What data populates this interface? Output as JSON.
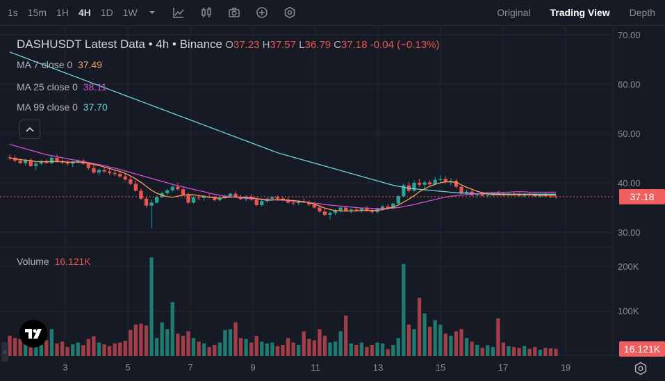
{
  "toolbar": {
    "timeframes": [
      {
        "label": "1s",
        "active": false
      },
      {
        "label": "15m",
        "active": false
      },
      {
        "label": "1H",
        "active": false
      },
      {
        "label": "4H",
        "active": true
      },
      {
        "label": "1D",
        "active": false
      },
      {
        "label": "1W",
        "active": false
      }
    ],
    "icons": [
      "chevron-down-icon",
      "indicators-icon",
      "candle-type-icon",
      "camera-icon",
      "add-icon",
      "settings-icon"
    ],
    "view_tabs": [
      {
        "label": "Original",
        "active": false
      },
      {
        "label": "Trading View",
        "active": true
      },
      {
        "label": "Depth",
        "active": false
      }
    ]
  },
  "legend": {
    "symbol": "DASHUSDT Latest Data • 4h • Binance",
    "o_label": "O",
    "o_value": "37.23",
    "h_label": "H",
    "h_value": "37.57",
    "l_label": "L",
    "l_value": "36.79",
    "c_label": "C",
    "c_value": "37.18",
    "change": "-0.04 (−0.13%)",
    "ma7_label": "MA 7 close 0",
    "ma7_value": "37.49",
    "ma7_color": "#f7a25c",
    "ma25_label": "MA 25 close 0",
    "ma25_value": "38.11",
    "ma25_color": "#d14fd6",
    "ma99_label": "MA 99 close 0",
    "ma99_value": "37.70",
    "ma99_color": "#6fd6cf"
  },
  "volume_legend": {
    "label": "Volume",
    "value": "16.121K"
  },
  "price_axis": [
    "70.00",
    "60.00",
    "50.00",
    "40.00",
    "30.00"
  ],
  "volume_axis": [
    "200K",
    "100K"
  ],
  "date_axis": [
    "3",
    "5",
    "7",
    "9",
    "11",
    "13",
    "15",
    "17",
    "19"
  ],
  "current_price": {
    "value": "37.18",
    "price": 37.18,
    "color": "#f05e5e"
  },
  "current_volume": {
    "value": "16.121K",
    "color": "#f05e5e"
  },
  "colors": {
    "up": "#26a69a",
    "down": "#ef5350",
    "up_vol": "#1f7a70",
    "down_vol": "#a13e47"
  },
  "chart_data": {
    "type": "candlestick",
    "price_range": [
      30,
      70
    ],
    "volume_range": [
      0,
      200
    ],
    "volume_unit": "K",
    "candles": [
      [
        45.2,
        45.8,
        44.6,
        45.1,
        45
      ],
      [
        45.1,
        45.6,
        44.2,
        44.5,
        40
      ],
      [
        44.5,
        45.0,
        43.8,
        44.0,
        38
      ],
      [
        44.0,
        44.9,
        43.5,
        44.6,
        30
      ],
      [
        44.6,
        45.0,
        43.2,
        43.4,
        55
      ],
      [
        43.4,
        44.2,
        42.5,
        43.9,
        42
      ],
      [
        43.9,
        44.7,
        43.6,
        44.3,
        25
      ],
      [
        44.3,
        44.8,
        43.9,
        44.0,
        35
      ],
      [
        44.0,
        45.5,
        43.8,
        45.1,
        60
      ],
      [
        45.1,
        45.8,
        44.1,
        44.4,
        28
      ],
      [
        44.4,
        44.9,
        43.8,
        44.1,
        32
      ],
      [
        44.1,
        44.7,
        43.5,
        43.9,
        20
      ],
      [
        43.9,
        44.5,
        43.2,
        44.2,
        26
      ],
      [
        44.2,
        44.8,
        43.9,
        44.5,
        30
      ],
      [
        44.5,
        44.9,
        43.7,
        43.9,
        24
      ],
      [
        43.9,
        44.2,
        42.6,
        43.0,
        38
      ],
      [
        43.0,
        43.5,
        41.8,
        42.1,
        44
      ],
      [
        42.1,
        42.9,
        41.5,
        42.6,
        30
      ],
      [
        42.6,
        43.1,
        42.0,
        42.3,
        26
      ],
      [
        42.3,
        42.8,
        41.6,
        42.0,
        22
      ],
      [
        42.0,
        42.6,
        41.4,
        41.8,
        28
      ],
      [
        41.8,
        42.4,
        41.0,
        41.3,
        30
      ],
      [
        41.3,
        41.9,
        40.4,
        40.7,
        34
      ],
      [
        40.7,
        41.2,
        39.5,
        39.8,
        58
      ],
      [
        39.8,
        40.5,
        38.2,
        38.4,
        70
      ],
      [
        38.4,
        38.9,
        36.5,
        36.8,
        72
      ],
      [
        36.8,
        37.2,
        35.0,
        35.4,
        68
      ],
      [
        35.4,
        36.6,
        30.8,
        36.0,
        220
      ],
      [
        36.0,
        37.4,
        35.8,
        37.1,
        40
      ],
      [
        37.1,
        38.2,
        36.9,
        37.9,
        75
      ],
      [
        37.9,
        38.8,
        37.5,
        38.5,
        60
      ],
      [
        38.5,
        39.5,
        38.2,
        39.2,
        120
      ],
      [
        39.2,
        40.0,
        38.4,
        38.7,
        50
      ],
      [
        38.7,
        39.2,
        37.4,
        37.6,
        45
      ],
      [
        37.6,
        38.0,
        35.7,
        36.0,
        55
      ],
      [
        36.0,
        37.3,
        35.8,
        37.0,
        40
      ],
      [
        37.0,
        37.6,
        36.5,
        36.9,
        32
      ],
      [
        36.9,
        37.5,
        36.4,
        37.2,
        28
      ],
      [
        37.2,
        37.8,
        36.8,
        37.0,
        20
      ],
      [
        37.0,
        37.3,
        36.3,
        36.5,
        25
      ],
      [
        36.5,
        37.2,
        36.2,
        37.0,
        30
      ],
      [
        37.0,
        37.6,
        36.8,
        37.3,
        58
      ],
      [
        37.3,
        38.0,
        37.0,
        37.8,
        60
      ],
      [
        37.8,
        38.3,
        37.0,
        37.2,
        75
      ],
      [
        37.2,
        37.6,
        36.5,
        36.7,
        40
      ],
      [
        36.7,
        37.5,
        36.3,
        37.2,
        38
      ],
      [
        37.2,
        37.7,
        36.4,
        36.6,
        30
      ],
      [
        36.6,
        37.0,
        35.2,
        35.5,
        45
      ],
      [
        35.5,
        36.6,
        35.2,
        36.3,
        32
      ],
      [
        36.3,
        37.0,
        35.9,
        36.8,
        28
      ],
      [
        36.8,
        37.3,
        36.5,
        37.1,
        30
      ],
      [
        37.1,
        37.5,
        36.6,
        36.8,
        22
      ],
      [
        36.8,
        37.2,
        36.3,
        36.6,
        25
      ],
      [
        36.6,
        37.1,
        35.8,
        36.0,
        40
      ],
      [
        36.0,
        36.6,
        35.4,
        35.9,
        30
      ],
      [
        35.9,
        36.5,
        35.5,
        36.2,
        25
      ],
      [
        36.2,
        36.9,
        35.9,
        36.0,
        55
      ],
      [
        36.0,
        36.4,
        35.3,
        35.6,
        38
      ],
      [
        35.6,
        36.0,
        34.8,
        35.0,
        35
      ],
      [
        35.0,
        35.5,
        34.0,
        34.2,
        60
      ],
      [
        34.2,
        34.9,
        33.2,
        33.5,
        45
      ],
      [
        33.5,
        34.2,
        32.6,
        33.9,
        30
      ],
      [
        33.9,
        34.7,
        33.5,
        34.4,
        32
      ],
      [
        34.4,
        35.2,
        34.0,
        35.0,
        55
      ],
      [
        35.0,
        35.4,
        34.1,
        34.3,
        90
      ],
      [
        34.3,
        34.9,
        33.8,
        34.6,
        28
      ],
      [
        34.6,
        35.1,
        34.2,
        34.4,
        25
      ],
      [
        34.4,
        35.0,
        34.0,
        34.8,
        30
      ],
      [
        34.8,
        35.3,
        34.2,
        34.3,
        20
      ],
      [
        34.3,
        34.8,
        33.7,
        34.1,
        25
      ],
      [
        34.1,
        35.0,
        33.8,
        34.8,
        30
      ],
      [
        34.8,
        35.5,
        34.4,
        35.2,
        28
      ],
      [
        35.2,
        35.8,
        34.6,
        34.8,
        15
      ],
      [
        34.8,
        36.0,
        34.6,
        35.8,
        25
      ],
      [
        35.8,
        37.5,
        35.6,
        37.3,
        40
      ],
      [
        37.3,
        39.8,
        37.0,
        39.5,
        205
      ],
      [
        39.5,
        40.2,
        38.0,
        38.4,
        70
      ],
      [
        38.4,
        40.5,
        38.1,
        40.0,
        60
      ],
      [
        40.0,
        40.8,
        39.2,
        39.6,
        130
      ],
      [
        39.6,
        40.4,
        38.8,
        40.1,
        95
      ],
      [
        40.1,
        40.6,
        39.4,
        39.7,
        65
      ],
      [
        39.7,
        41.2,
        39.5,
        40.6,
        80
      ],
      [
        40.6,
        41.5,
        40.2,
        40.8,
        70
      ],
      [
        40.8,
        41.3,
        39.8,
        40.2,
        50
      ],
      [
        40.2,
        40.9,
        39.5,
        40.4,
        45
      ],
      [
        40.4,
        40.8,
        38.9,
        39.2,
        55
      ],
      [
        39.2,
        39.6,
        37.5,
        37.8,
        60
      ],
      [
        37.8,
        38.6,
        37.6,
        38.2,
        40
      ],
      [
        38.2,
        38.7,
        37.3,
        37.5,
        32
      ],
      [
        37.5,
        38.0,
        37.1,
        37.7,
        25
      ],
      [
        37.7,
        38.2,
        37.2,
        37.4,
        18
      ],
      [
        37.4,
        37.9,
        37.0,
        37.6,
        24
      ],
      [
        37.6,
        38.1,
        37.3,
        37.9,
        20
      ],
      [
        37.9,
        38.4,
        37.5,
        37.7,
        84
      ],
      [
        37.7,
        38.1,
        37.2,
        37.5,
        30
      ],
      [
        37.5,
        38.0,
        37.3,
        37.8,
        22
      ],
      [
        37.8,
        38.2,
        37.4,
        37.6,
        20
      ],
      [
        37.6,
        38.0,
        37.2,
        37.4,
        18
      ],
      [
        37.4,
        37.9,
        37.1,
        37.7,
        22
      ],
      [
        37.7,
        38.1,
        37.3,
        37.5,
        16
      ],
      [
        37.5,
        37.9,
        37.2,
        37.3,
        20
      ],
      [
        37.3,
        37.8,
        37.0,
        37.6,
        14
      ],
      [
        37.6,
        38.0,
        37.2,
        37.3,
        18
      ],
      [
        37.3,
        37.7,
        36.9,
        37.2,
        17
      ],
      [
        37.23,
        37.57,
        36.79,
        37.18,
        16
      ]
    ],
    "ma7": [
      45.0,
      44.9,
      44.7,
      44.6,
      44.5,
      44.3,
      44.3,
      44.3,
      44.3,
      44.3,
      44.3,
      44.2,
      44.2,
      44.2,
      44.1,
      44.0,
      43.7,
      43.5,
      43.2,
      42.9,
      42.6,
      42.3,
      41.9,
      41.4,
      40.8,
      40.1,
      39.3,
      38.5,
      37.9,
      37.5,
      37.2,
      37.1,
      37.3,
      37.5,
      37.6,
      37.6,
      37.4,
      37.3,
      37.1,
      37.0,
      36.9,
      37.0,
      37.1,
      37.2,
      37.1,
      37.1,
      37.0,
      36.8,
      36.6,
      36.5,
      36.5,
      36.6,
      36.6,
      36.5,
      36.4,
      36.3,
      36.2,
      36.0,
      35.7,
      35.3,
      34.9,
      34.6,
      34.4,
      34.3,
      34.3,
      34.3,
      34.3,
      34.4,
      34.4,
      34.4,
      34.4,
      34.6,
      34.8,
      35.1,
      35.5,
      36.1,
      36.7,
      37.4,
      38.2,
      38.8,
      39.3,
      39.7,
      40.0,
      40.2,
      40.2,
      40.1,
      39.6,
      39.1,
      38.7,
      38.3,
      38.0,
      37.8,
      37.6,
      37.6,
      37.6,
      37.6,
      37.6,
      37.6,
      37.6,
      37.6,
      37.5,
      37.5,
      37.5,
      37.5,
      37.49
    ],
    "ma25": [
      47.8,
      47.5,
      47.2,
      46.9,
      46.6,
      46.3,
      46.0,
      45.7,
      45.5,
      45.3,
      45.1,
      44.9,
      44.7,
      44.5,
      44.3,
      44.1,
      43.9,
      43.7,
      43.5,
      43.2,
      43.0,
      42.7,
      42.4,
      42.1,
      41.8,
      41.5,
      41.2,
      40.9,
      40.6,
      40.3,
      40.0,
      39.7,
      39.4,
      39.2,
      38.9,
      38.7,
      38.4,
      38.2,
      37.9,
      37.7,
      37.5,
      37.3,
      37.2,
      37.1,
      37.0,
      36.9,
      36.8,
      36.8,
      36.7,
      36.6,
      36.6,
      36.5,
      36.5,
      36.4,
      36.3,
      36.2,
      36.1,
      36.0,
      35.9,
      35.8,
      35.6,
      35.5,
      35.4,
      35.3,
      35.2,
      35.1,
      35.0,
      34.9,
      34.9,
      34.8,
      34.8,
      34.8,
      34.8,
      34.9,
      35.0,
      35.2,
      35.4,
      35.6,
      35.9,
      36.1,
      36.4,
      36.6,
      36.9,
      37.1,
      37.3,
      37.4,
      37.5,
      37.6,
      37.7,
      37.8,
      37.9,
      38.0,
      38.0,
      38.1,
      38.1,
      38.1,
      38.2,
      38.2,
      38.2,
      38.1,
      38.1,
      38.1,
      38.1,
      38.1,
      38.11
    ],
    "ma99": [
      66.5,
      66.1,
      65.7,
      65.3,
      64.9,
      64.5,
      64.1,
      63.7,
      63.3,
      62.9,
      62.5,
      62.1,
      61.7,
      61.3,
      60.9,
      60.5,
      60.1,
      59.7,
      59.3,
      58.9,
      58.5,
      58.1,
      57.7,
      57.3,
      56.9,
      56.5,
      56.1,
      55.7,
      55.3,
      54.9,
      54.5,
      54.1,
      53.7,
      53.3,
      52.9,
      52.5,
      52.1,
      51.7,
      51.3,
      50.9,
      50.5,
      50.1,
      49.7,
      49.3,
      48.9,
      48.5,
      48.1,
      47.7,
      47.3,
      46.9,
      46.5,
      46.1,
      45.8,
      45.5,
      45.2,
      44.9,
      44.6,
      44.3,
      44.0,
      43.7,
      43.4,
      43.1,
      42.8,
      42.5,
      42.2,
      41.9,
      41.6,
      41.3,
      41.0,
      40.7,
      40.4,
      40.1,
      39.8,
      39.5,
      39.3,
      39.1,
      38.9,
      38.8,
      38.7,
      38.6,
      38.5,
      38.4,
      38.3,
      38.2,
      38.1,
      38.0,
      37.95,
      37.9,
      37.85,
      37.8,
      37.8,
      37.8,
      37.75,
      37.75,
      37.75,
      37.7,
      37.7,
      37.7,
      37.7,
      37.7,
      37.7,
      37.7,
      37.7,
      37.7,
      37.7
    ]
  }
}
